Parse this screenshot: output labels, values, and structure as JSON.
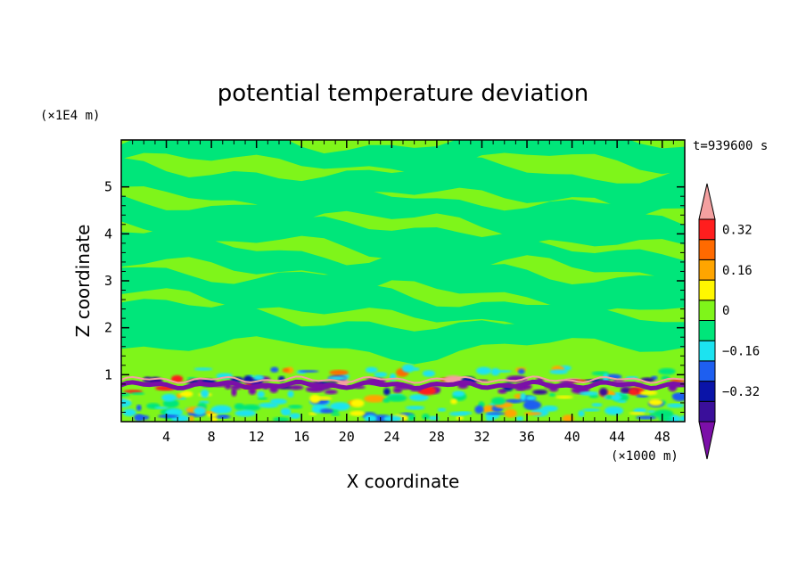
{
  "chart_data": {
    "type": "heatmap",
    "title": "potential temperature deviation",
    "xlabel": "X coordinate",
    "ylabel": "Z coordinate",
    "x_unit": "(×1000 m)",
    "y_unit": "(×1E4 m)",
    "time_label": "t=939600 s",
    "xlim": [
      0,
      50
    ],
    "ylim": [
      0,
      6
    ],
    "x_ticks": [
      "4",
      "8",
      "12",
      "16",
      "20",
      "24",
      "28",
      "32",
      "36",
      "40",
      "44",
      "48"
    ],
    "y_ticks": [
      "1",
      "2",
      "3",
      "4",
      "5"
    ],
    "colorbar": {
      "levels": [
        {
          "color": "#7b0fa8"
        },
        {
          "color": "#3a0f9a"
        },
        {
          "color": "#0a14a8"
        },
        {
          "color": "#1e5ff0"
        },
        {
          "color": "#1ce3f0"
        },
        {
          "color": "#00e67a"
        },
        {
          "color": "#7ff51a"
        },
        {
          "color": "#fff700"
        },
        {
          "color": "#ffa500"
        },
        {
          "color": "#ff6a00"
        },
        {
          "color": "#ff1e1e"
        },
        {
          "color": "#f4a0a0"
        }
      ],
      "tick_labels": [
        "0.32",
        "0.16",
        "0",
        "−0.16",
        "−0.32"
      ]
    }
  }
}
